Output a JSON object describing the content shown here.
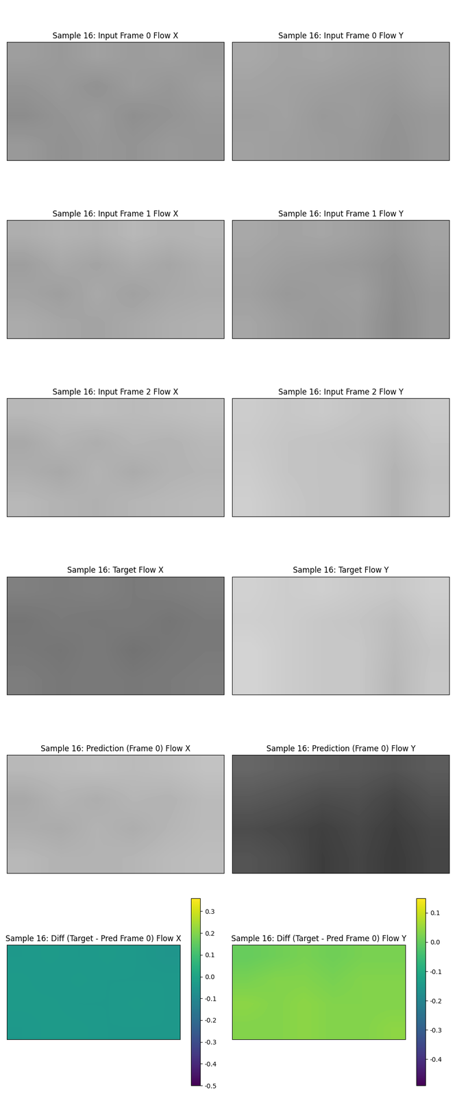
{
  "chart_data": [
    {
      "type": "image",
      "title": "Sample 16: Input Frame 0 Flow X",
      "color": "gray",
      "tick_labels": false,
      "range": [
        0,
        1
      ],
      "cells": [
        [
          0.62,
          0.6,
          0.63,
          0.61,
          0.62,
          0.6
        ],
        [
          0.58,
          0.6,
          0.57,
          0.61,
          0.59,
          0.62
        ],
        [
          0.55,
          0.58,
          0.6,
          0.56,
          0.58,
          0.6
        ],
        [
          0.6,
          0.57,
          0.59,
          0.58,
          0.6,
          0.59
        ]
      ]
    },
    {
      "type": "image",
      "title": "Sample 16: Input Frame 0 Flow Y",
      "color": "gray",
      "tick_labels": false,
      "range": [
        0,
        1
      ],
      "cells": [
        [
          0.66,
          0.64,
          0.65,
          0.63,
          0.62,
          0.64
        ],
        [
          0.64,
          0.63,
          0.62,
          0.61,
          0.6,
          0.63
        ],
        [
          0.62,
          0.63,
          0.6,
          0.61,
          0.58,
          0.6
        ],
        [
          0.63,
          0.62,
          0.61,
          0.6,
          0.57,
          0.6
        ]
      ]
    },
    {
      "type": "image",
      "title": "Sample 16: Input Frame 1 Flow X",
      "color": "gray",
      "tick_labels": false,
      "range": [
        0,
        1
      ],
      "cells": [
        [
          0.68,
          0.7,
          0.69,
          0.72,
          0.7,
          0.71
        ],
        [
          0.62,
          0.66,
          0.64,
          0.67,
          0.65,
          0.68
        ],
        [
          0.64,
          0.62,
          0.66,
          0.63,
          0.66,
          0.67
        ],
        [
          0.67,
          0.65,
          0.64,
          0.66,
          0.68,
          0.69
        ]
      ]
    },
    {
      "type": "image",
      "title": "Sample 16: Input Frame 1 Flow Y",
      "color": "gray",
      "tick_labels": false,
      "range": [
        0,
        1
      ],
      "cells": [
        [
          0.66,
          0.64,
          0.65,
          0.63,
          0.6,
          0.64
        ],
        [
          0.64,
          0.62,
          0.61,
          0.6,
          0.57,
          0.62
        ],
        [
          0.63,
          0.6,
          0.61,
          0.62,
          0.56,
          0.6
        ],
        [
          0.65,
          0.62,
          0.6,
          0.61,
          0.55,
          0.6
        ]
      ]
    },
    {
      "type": "image",
      "title": "Sample 16: Input Frame 2 Flow X",
      "color": "gray",
      "tick_labels": false,
      "range": [
        0,
        1
      ],
      "cells": [
        [
          0.72,
          0.73,
          0.74,
          0.73,
          0.74,
          0.75
        ],
        [
          0.66,
          0.7,
          0.68,
          0.71,
          0.7,
          0.72
        ],
        [
          0.68,
          0.66,
          0.7,
          0.67,
          0.7,
          0.71
        ],
        [
          0.72,
          0.7,
          0.69,
          0.71,
          0.72,
          0.73
        ]
      ]
    },
    {
      "type": "image",
      "title": "Sample 16: Input Frame 2 Flow Y",
      "color": "gray",
      "tick_labels": false,
      "range": [
        0,
        1
      ],
      "cells": [
        [
          0.8,
          0.78,
          0.79,
          0.77,
          0.76,
          0.79
        ],
        [
          0.79,
          0.77,
          0.76,
          0.75,
          0.72,
          0.77
        ],
        [
          0.8,
          0.77,
          0.76,
          0.76,
          0.7,
          0.75
        ],
        [
          0.81,
          0.78,
          0.76,
          0.76,
          0.7,
          0.76
        ]
      ]
    },
    {
      "type": "image",
      "title": "Sample 16: Target Flow X",
      "color": "gray",
      "tick_labels": false,
      "range": [
        0,
        1
      ],
      "cells": [
        [
          0.5,
          0.49,
          0.5,
          0.48,
          0.49,
          0.5
        ],
        [
          0.46,
          0.48,
          0.47,
          0.48,
          0.46,
          0.48
        ],
        [
          0.47,
          0.46,
          0.48,
          0.45,
          0.47,
          0.48
        ],
        [
          0.49,
          0.47,
          0.48,
          0.47,
          0.48,
          0.49
        ]
      ]
    },
    {
      "type": "image",
      "title": "Sample 16: Target Flow Y",
      "color": "gray",
      "tick_labels": false,
      "range": [
        0,
        1
      ],
      "cells": [
        [
          0.82,
          0.8,
          0.81,
          0.79,
          0.78,
          0.81
        ],
        [
          0.81,
          0.8,
          0.78,
          0.77,
          0.74,
          0.79
        ],
        [
          0.83,
          0.8,
          0.78,
          0.78,
          0.73,
          0.77
        ],
        [
          0.83,
          0.8,
          0.78,
          0.78,
          0.72,
          0.78
        ]
      ]
    },
    {
      "type": "image",
      "title": "Sample 16: Prediction (Frame 0) Flow X",
      "color": "gray",
      "tick_labels": false,
      "range": [
        0,
        1
      ],
      "cells": [
        [
          0.72,
          0.73,
          0.74,
          0.73,
          0.74,
          0.76
        ],
        [
          0.66,
          0.7,
          0.68,
          0.71,
          0.7,
          0.73
        ],
        [
          0.68,
          0.67,
          0.7,
          0.68,
          0.71,
          0.73
        ],
        [
          0.72,
          0.7,
          0.7,
          0.71,
          0.73,
          0.74
        ]
      ]
    },
    {
      "type": "image",
      "title": "Sample 16: Prediction (Frame 0) Flow Y",
      "color": "gray",
      "tick_labels": false,
      "range": [
        0,
        1
      ],
      "cells": [
        [
          0.4,
          0.38,
          0.36,
          0.35,
          0.33,
          0.36
        ],
        [
          0.35,
          0.33,
          0.3,
          0.31,
          0.27,
          0.32
        ],
        [
          0.3,
          0.28,
          0.25,
          0.28,
          0.24,
          0.28
        ],
        [
          0.33,
          0.3,
          0.24,
          0.27,
          0.23,
          0.27
        ]
      ]
    },
    {
      "type": "heatmap",
      "title": "Sample 16: Diff (Target - Pred Frame 0) Flow X",
      "color": "viridis",
      "tick_labels": false,
      "cells": [
        [
          -0.04,
          -0.03,
          -0.04,
          -0.03,
          -0.04,
          -0.05
        ],
        [
          -0.03,
          -0.04,
          -0.03,
          -0.04,
          -0.04,
          -0.04
        ],
        [
          -0.03,
          -0.03,
          -0.04,
          -0.04,
          -0.03,
          -0.04
        ],
        [
          -0.04,
          -0.03,
          -0.03,
          -0.04,
          -0.04,
          -0.04
        ]
      ],
      "colorbar": {
        "range": [
          -0.5,
          0.36
        ],
        "ticks": [
          -0.5,
          -0.4,
          -0.3,
          -0.2,
          -0.1,
          0.0,
          0.1,
          0.2,
          0.3
        ]
      }
    },
    {
      "type": "heatmap",
      "title": "Sample 16: Diff (Target - Pred Frame 0) Flow Y",
      "color": "viridis",
      "tick_labels": false,
      "cells": [
        [
          0.0,
          0.01,
          0.02,
          0.01,
          0.02,
          0.02
        ],
        [
          0.02,
          0.03,
          0.03,
          0.02,
          0.03,
          0.03
        ],
        [
          0.04,
          0.03,
          0.04,
          0.03,
          0.03,
          0.03
        ],
        [
          0.03,
          0.03,
          0.04,
          0.03,
          0.03,
          0.04
        ]
      ],
      "colorbar": {
        "range": [
          -0.49,
          0.15
        ],
        "ticks": [
          -0.4,
          -0.3,
          -0.2,
          -0.1,
          0.0,
          0.1
        ]
      }
    }
  ]
}
